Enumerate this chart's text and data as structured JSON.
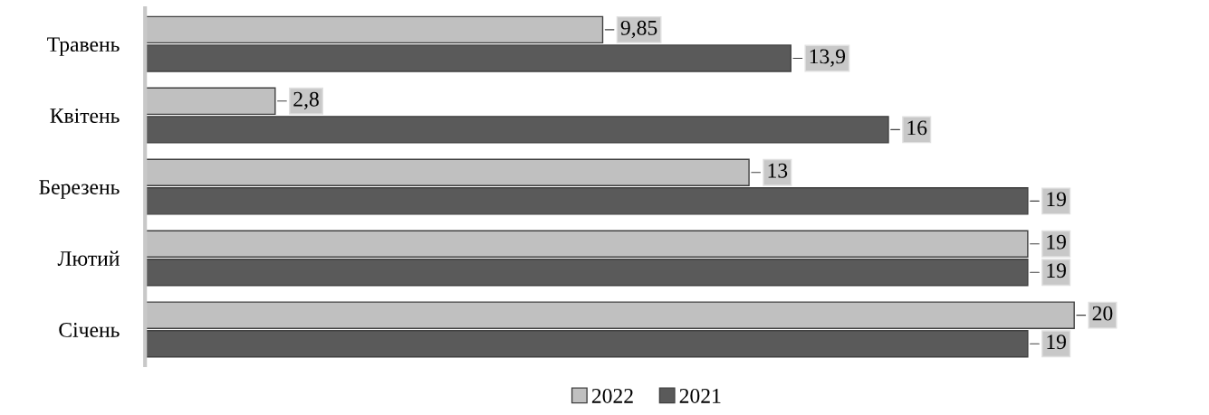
{
  "chart_data": {
    "type": "bar",
    "orientation": "horizontal",
    "categories": [
      "Травень",
      "Квітень",
      "Березень",
      "Лютий",
      "Січень"
    ],
    "series": [
      {
        "name": "2022",
        "color": "#c0c0c0",
        "values": [
          9.85,
          2.8,
          13,
          19,
          20
        ],
        "value_labels": [
          "9,85",
          "2,8",
          "13",
          "19",
          "20"
        ]
      },
      {
        "name": "2021",
        "color": "#5a5a5a",
        "values": [
          13.9,
          16,
          19,
          19,
          19
        ],
        "value_labels": [
          "13,9",
          "16",
          "19",
          "19",
          "19"
        ]
      }
    ],
    "legend": "bottom",
    "grid": false
  }
}
